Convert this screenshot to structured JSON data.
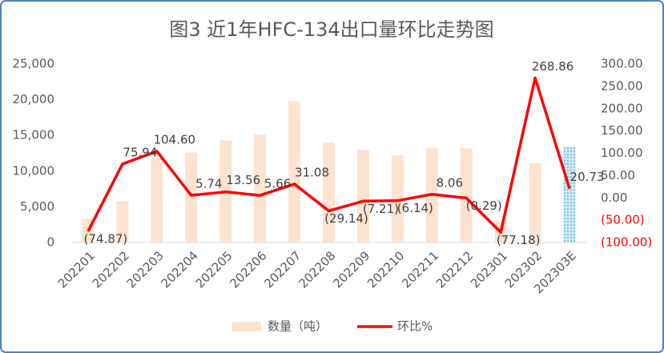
{
  "chart_data": {
    "type": "bar_line",
    "title": "图3  近1年HFC-134出口量环比走势图",
    "categories": [
      "202201",
      "202202",
      "202203",
      "202204",
      "202205",
      "202206",
      "202207",
      "202208",
      "202209",
      "202210",
      "202211",
      "202212",
      "202301",
      "202302",
      "202303E"
    ],
    "series": [
      {
        "name": "数量（吨）",
        "type": "bar",
        "color": "#fde3d0",
        "estimate_color": "#8fcde3",
        "values": [
          3300,
          5800,
          11900,
          12600,
          14300,
          15100,
          19800,
          14000,
          13000,
          12200,
          13200,
          13200,
          3000,
          11100,
          13400
        ]
      },
      {
        "name": "环比%",
        "type": "line",
        "axis": "y2",
        "color": "#ff0000",
        "values": [
          -74.87,
          75.94,
          104.6,
          5.74,
          13.56,
          5.66,
          31.08,
          -29.14,
          -7.21,
          -6.14,
          8.06,
          -0.29,
          -77.18,
          268.86,
          20.73
        ],
        "value_labels": [
          "(74.87)",
          "75.94",
          "104.60",
          "5.74",
          "13.56",
          "5.66",
          "31.08",
          "(29.14)",
          "(7.21)",
          "(6.14)",
          "8.06",
          "(0.29)",
          "(77.18)",
          "268.86",
          "20.73"
        ]
      }
    ],
    "ylim": [
      0,
      25000
    ],
    "yticks": [
      0,
      {
        "value": 5000,
        "label": "5,000"
      },
      {
        "value": 10000,
        "label": "10,000"
      },
      {
        "value": 15000,
        "label": "15,000"
      },
      {
        "value": 20000,
        "label": "20,000"
      },
      {
        "value": 25000,
        "label": "25,000"
      }
    ],
    "y2lim": [
      -100,
      300
    ],
    "y2ticks": [
      {
        "value": -100,
        "label": "(100.00)"
      },
      {
        "value": -50,
        "label": "(50.00)"
      },
      {
        "value": 0,
        "label": "0.00"
      },
      {
        "value": 50,
        "label": "50.00"
      },
      {
        "value": 100,
        "label": "100.00"
      },
      {
        "value": 150,
        "label": "150.00"
      },
      {
        "value": 200,
        "label": "200.00"
      },
      {
        "value": 250,
        "label": "250.00"
      },
      {
        "value": 300,
        "label": "300.00"
      }
    ],
    "legend": "bottom"
  }
}
